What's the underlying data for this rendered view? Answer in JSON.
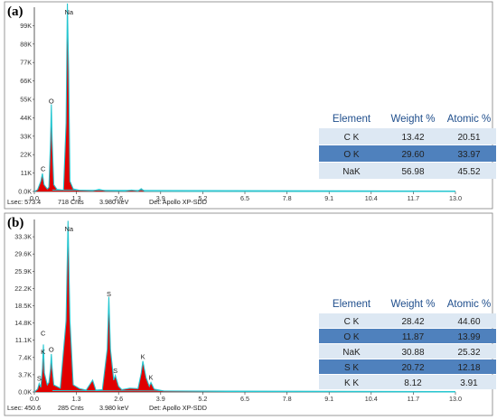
{
  "chart_data": [
    {
      "type": "area",
      "panel_label": "(a)",
      "xlabel": "",
      "ylabel": "",
      "xlim": [
        0,
        13
      ],
      "x_ticks": [
        "0.0",
        "1.3",
        "2.6",
        "3.9",
        "5.2",
        "6.5",
        "7.8",
        "9.1",
        "10.4",
        "11.7",
        "13.0"
      ],
      "ylim": [
        0,
        110000
      ],
      "y_ticks": [
        "0.0K",
        "11K",
        "22K",
        "33K",
        "44K",
        "55K",
        "66K",
        "77K",
        "88K",
        "99K"
      ],
      "series": [
        {
          "values": [
            [
              0.0,
              0
            ],
            [
              0.1,
              1000
            ],
            [
              0.2,
              6000
            ],
            [
              0.25,
              10500
            ],
            [
              0.3,
              4000
            ],
            [
              0.4,
              1500
            ],
            [
              0.45,
              2500
            ],
            [
              0.5,
              30000
            ],
            [
              0.525,
              51000
            ],
            [
              0.55,
              30000
            ],
            [
              0.6,
              4000
            ],
            [
              0.7,
              1200
            ],
            [
              0.9,
              800
            ],
            [
              0.98,
              40000
            ],
            [
              1.02,
              110000
            ],
            [
              1.06,
              70000
            ],
            [
              1.1,
              6000
            ],
            [
              1.2,
              1500
            ],
            [
              1.4,
              700
            ],
            [
              1.8,
              400
            ],
            [
              2.0,
              1200
            ],
            [
              2.2,
              400
            ],
            [
              2.8,
              300
            ],
            [
              3.0,
              800
            ],
            [
              3.2,
              300
            ],
            [
              3.3,
              1600
            ],
            [
              3.4,
              200
            ],
            [
              5.0,
              100
            ],
            [
              13.0,
              0
            ]
          ]
        }
      ],
      "peaks": [
        {
          "label": "C",
          "x": 0.27,
          "y": 10500
        },
        {
          "label": "O",
          "x": 0.525,
          "y": 51000
        },
        {
          "label": "Na",
          "x": 1.04,
          "y": 110000
        }
      ],
      "status": {
        "lsec": "Lsec: 573.4",
        "cnts": "718 Cnts",
        "kev": "3.980 keV",
        "det": "Det: Apollo XP-SDD"
      },
      "table": {
        "headers": [
          "Element",
          "Weight %",
          "Atomic %"
        ],
        "rows": [
          {
            "element": "C K",
            "weight": "13.42",
            "atomic": "20.51"
          },
          {
            "element": "O K",
            "weight": "29.60",
            "atomic": "33.97"
          },
          {
            "element": "NaK",
            "weight": "56.98",
            "atomic": "45.52"
          }
        ]
      }
    },
    {
      "type": "area",
      "panel_label": "(b)",
      "xlabel": "",
      "ylabel": "",
      "xlim": [
        0,
        13
      ],
      "x_ticks": [
        "0.0",
        "1.3",
        "2.6",
        "3.9",
        "5.2",
        "6.5",
        "7.8",
        "9.1",
        "10.4",
        "11.7",
        "13.0"
      ],
      "ylim": [
        0,
        37000
      ],
      "y_ticks": [
        "0.0K",
        "3.7K",
        "7.4K",
        "11.1K",
        "14.8K",
        "18.5K",
        "22.2K",
        "25.9K",
        "29.6K",
        "33.3K"
      ],
      "series": [
        {
          "values": [
            [
              0.0,
              0
            ],
            [
              0.1,
              600
            ],
            [
              0.15,
              1800
            ],
            [
              0.2,
              1000
            ],
            [
              0.25,
              5000
            ],
            [
              0.28,
              10000
            ],
            [
              0.31,
              4000
            ],
            [
              0.4,
              1500
            ],
            [
              0.45,
              2000
            ],
            [
              0.5,
              5000
            ],
            [
              0.525,
              8000
            ],
            [
              0.55,
              5000
            ],
            [
              0.6,
              1500
            ],
            [
              0.8,
              800
            ],
            [
              0.98,
              15000
            ],
            [
              1.04,
              36000
            ],
            [
              1.1,
              15000
            ],
            [
              1.2,
              1500
            ],
            [
              1.4,
              700
            ],
            [
              1.6,
              400
            ],
            [
              1.8,
              2500
            ],
            [
              1.9,
              400
            ],
            [
              2.1,
              500
            ],
            [
              2.25,
              9000
            ],
            [
              2.3,
              20000
            ],
            [
              2.35,
              9000
            ],
            [
              2.45,
              2500
            ],
            [
              2.5,
              3500
            ],
            [
              2.6,
              1200
            ],
            [
              2.7,
              500
            ],
            [
              2.95,
              800
            ],
            [
              3.2,
              700
            ],
            [
              3.3,
              4000
            ],
            [
              3.35,
              6500
            ],
            [
              3.45,
              3000
            ],
            [
              3.55,
              1200
            ],
            [
              3.6,
              2000
            ],
            [
              3.7,
              600
            ],
            [
              4.0,
              200
            ],
            [
              6.0,
              100
            ],
            [
              13.0,
              0
            ]
          ]
        }
      ],
      "peaks": [
        {
          "label": "S",
          "x": 0.15,
          "y": 1800
        },
        {
          "label": "C",
          "x": 0.27,
          "y": 10000
        },
        {
          "label": "K",
          "x": 0.27,
          "y": 7600
        },
        {
          "label": "O",
          "x": 0.525,
          "y": 8000
        },
        {
          "label": "Na",
          "x": 1.04,
          "y": 36000
        },
        {
          "label": "S",
          "x": 2.3,
          "y": 20000
        },
        {
          "label": "S",
          "x": 2.5,
          "y": 3500
        },
        {
          "label": "K",
          "x": 3.35,
          "y": 6500
        },
        {
          "label": "K",
          "x": 3.6,
          "y": 2000
        }
      ],
      "status": {
        "lsec": "Lsec: 450.6",
        "cnts": "285 Cnts",
        "kev": "3.980 keV",
        "det": "Det: Apollo XP-SDD"
      },
      "table": {
        "headers": [
          "Element",
          "Weight %",
          "Atomic %"
        ],
        "rows": [
          {
            "element": "C K",
            "weight": "28.42",
            "atomic": "44.60"
          },
          {
            "element": "O K",
            "weight": "11.87",
            "atomic": "13.99"
          },
          {
            "element": "NaK",
            "weight": "30.88",
            "atomic": "25.32"
          },
          {
            "element": "S K",
            "weight": "20.72",
            "atomic": "12.18"
          },
          {
            "element": "K K",
            "weight": "8.12",
            "atomic": "3.91"
          }
        ]
      }
    }
  ]
}
